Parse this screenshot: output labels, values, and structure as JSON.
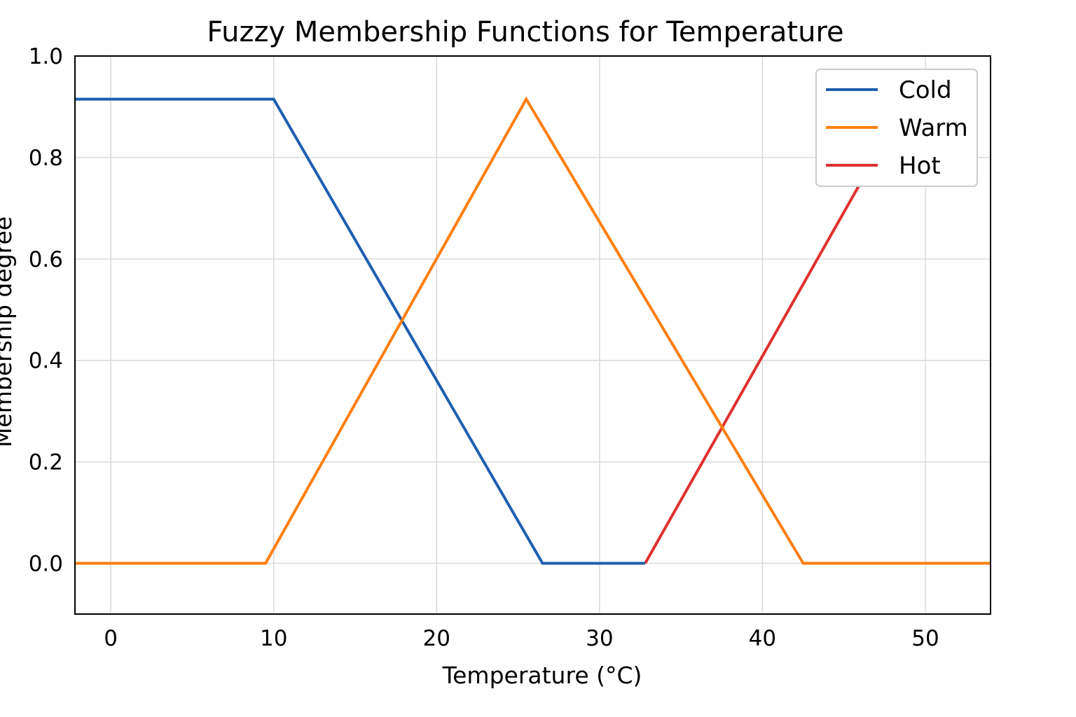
{
  "chart_data": {
    "type": "line",
    "title": "Fuzzy Membership Functions for Temperature",
    "xlabel": "Temperature (°C)",
    "ylabel": "Membership degree",
    "xlim": [
      -2.2,
      54.0
    ],
    "ylim": [
      -0.1,
      1.0
    ],
    "xticks": [
      {
        "value": 0,
        "label": "0"
      },
      {
        "value": 10,
        "label": "10"
      },
      {
        "value": 20,
        "label": "20"
      },
      {
        "value": 30,
        "label": "30"
      },
      {
        "value": 40,
        "label": "40"
      },
      {
        "value": 50,
        "label": "50"
      }
    ],
    "yticks": [
      {
        "value": 0.0,
        "label": "0.0"
      },
      {
        "value": 0.2,
        "label": "0.2"
      },
      {
        "value": 0.4,
        "label": "0.4"
      },
      {
        "value": 0.6,
        "label": "0.6"
      },
      {
        "value": 0.8,
        "label": "0.8"
      },
      {
        "value": 1.0,
        "label": "1.0"
      }
    ],
    "grid": true,
    "legend_position": "top-right",
    "series": [
      {
        "name": "Cold",
        "color": "#1f5eb0",
        "x": [
          -2.2,
          10.0,
          26.5,
          32.8
        ],
        "y": [
          0.915,
          0.915,
          0.0,
          0.0
        ]
      },
      {
        "name": "Warm",
        "color": "#ff7f0e",
        "x": [
          -2.2,
          9.5,
          25.5,
          42.5,
          54.0
        ],
        "y": [
          0.0,
          0.0,
          0.915,
          0.0,
          0.0
        ]
      },
      {
        "name": "Hot",
        "color": "#e03030",
        "x": [
          32.8,
          46.9
        ],
        "y": [
          0.0,
          0.8
        ]
      }
    ]
  }
}
